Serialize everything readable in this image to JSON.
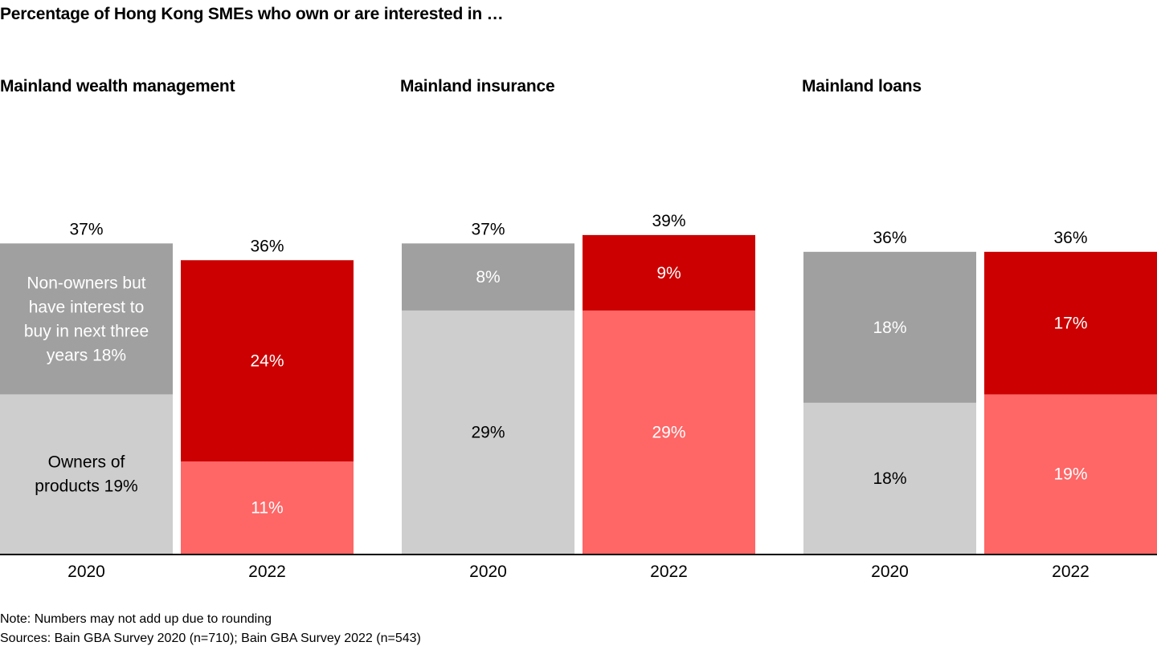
{
  "chart_data": {
    "type": "bar",
    "stacked": true,
    "title": "Percentage of Hong Kong SMEs who own or are interested in …",
    "xlabel": "",
    "ylabel": "",
    "ylim": [
      0,
      39
    ],
    "grid": false,
    "legend": "none (series labels placed inside first bar)",
    "panels": [
      {
        "title": "Mainland wealth management",
        "categories": [
          "2020",
          "2022"
        ],
        "totals": [
          "37%",
          "36%"
        ],
        "series": [
          {
            "name": "Owners of products",
            "values": [
              19,
              11
            ],
            "labels": [
              "Owners of products 19%",
              "11%"
            ]
          },
          {
            "name": "Non-owners but have interest to buy in next three years",
            "values": [
              18,
              24
            ],
            "labels": [
              "Non-owners but have interest to buy in next three years 18%",
              "24%"
            ]
          }
        ]
      },
      {
        "title": "Mainland insurance",
        "categories": [
          "2020",
          "2022"
        ],
        "totals": [
          "37%",
          "39%"
        ],
        "series": [
          {
            "name": "Owners of products",
            "values": [
              29,
              29
            ],
            "labels": [
              "29%",
              "29%"
            ]
          },
          {
            "name": "Non-owners but have interest to buy in next three years",
            "values": [
              8,
              9
            ],
            "labels": [
              "8%",
              "9%"
            ]
          }
        ]
      },
      {
        "title": "Mainland loans",
        "categories": [
          "2020",
          "2022"
        ],
        "totals": [
          "36%",
          "36%"
        ],
        "series": [
          {
            "name": "Owners of products",
            "values": [
              18,
              19
            ],
            "labels": [
              "18%",
              "19%"
            ]
          },
          {
            "name": "Non-owners but have interest to buy in next three years",
            "values": [
              18,
              17
            ],
            "labels": [
              "18%",
              "17%"
            ]
          }
        ]
      }
    ],
    "colors": {
      "owners_2020": "#cecece",
      "interest_2020": "#a0a0a0",
      "owners_2022": "#ff6666",
      "interest_2022": "#cc0000",
      "axis": "#000000"
    }
  },
  "notes": {
    "note": "Note: Numbers may not add up due to rounding",
    "sources": "Sources: Bain GBA Survey 2020 (n=710); Bain GBA Survey 2022 (n=543)"
  }
}
